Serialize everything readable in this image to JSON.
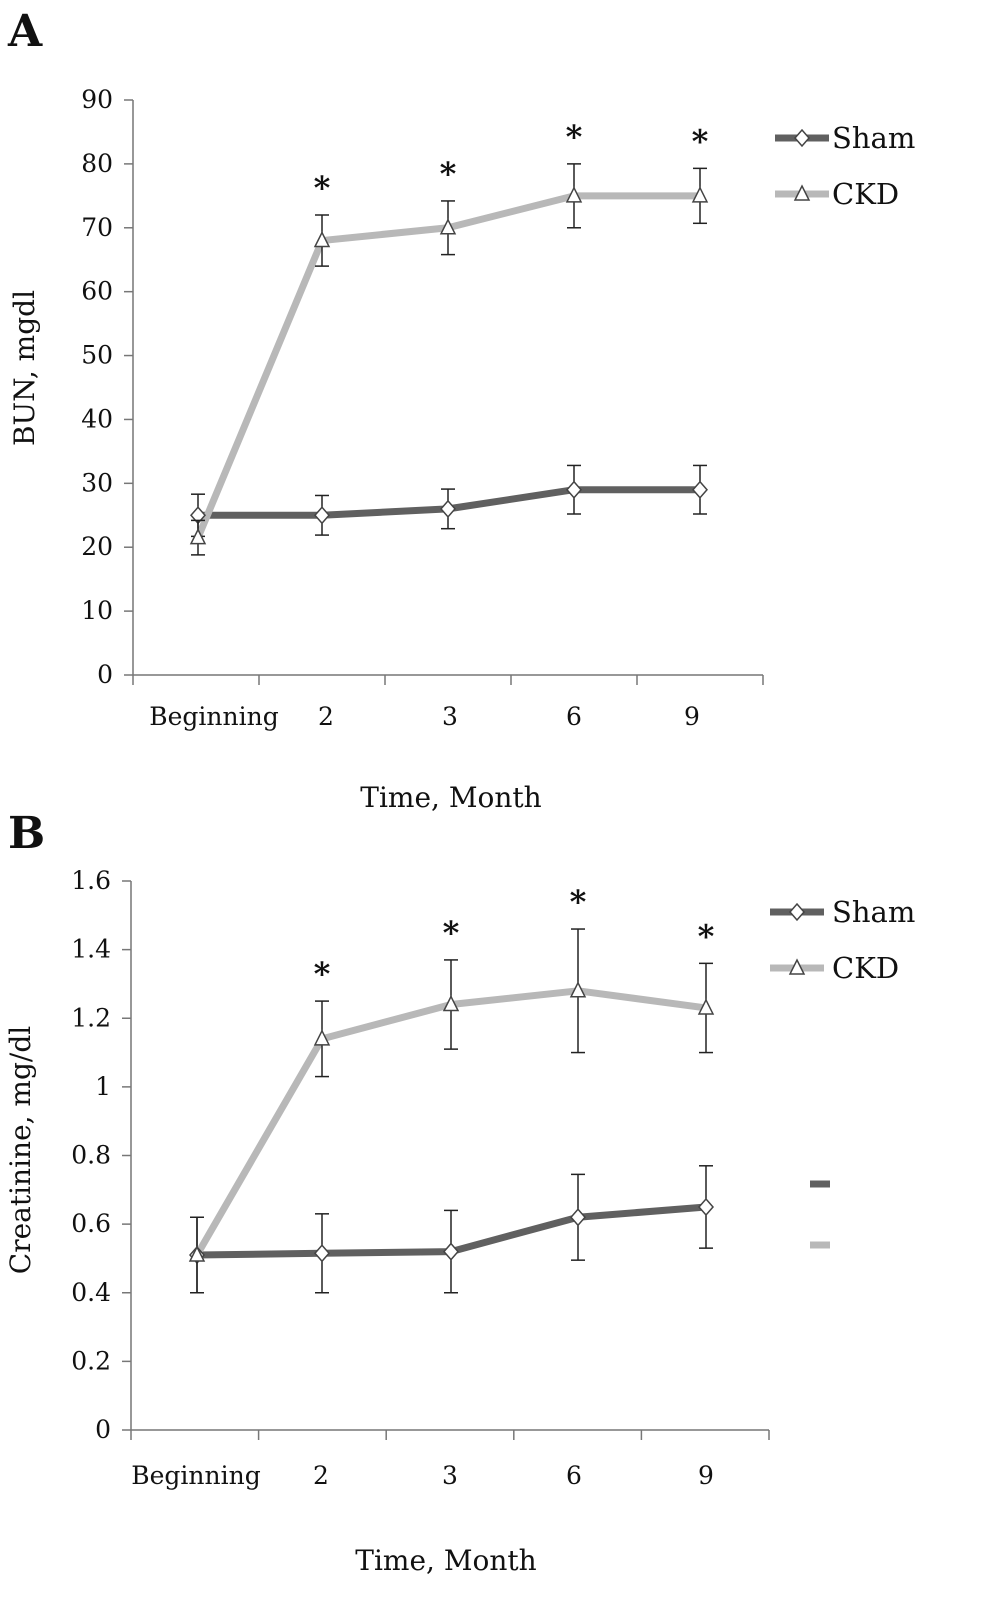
{
  "chart_data": [
    {
      "type": "line",
      "panel_label": "A",
      "xlabel": "Time, Month",
      "ylabel": "BUN, mgdl",
      "categories": [
        "Beginning",
        "2",
        "3",
        "6",
        "9"
      ],
      "ylim": [
        0,
        90
      ],
      "yticks": [
        "0",
        "10",
        "20",
        "30",
        "40",
        "50",
        "60",
        "70",
        "80",
        "90"
      ],
      "grid": false,
      "legend": "right",
      "series": [
        {
          "name": "Sham",
          "marker": "diamond",
          "color": "#606060",
          "values": [
            25,
            25,
            26,
            29,
            29
          ],
          "errors": [
            3.3,
            3.1,
            3.1,
            3.8,
            3.8
          ]
        },
        {
          "name": "CKD",
          "marker": "triangle",
          "color": "#b8b8b8",
          "values": [
            21.5,
            68,
            70,
            75,
            75
          ],
          "errors": [
            2.7,
            4.0,
            4.2,
            5.0,
            4.3
          ]
        }
      ],
      "significance": [
        "",
        "*",
        "*",
        "*",
        "*"
      ]
    },
    {
      "type": "line",
      "panel_label": "B",
      "xlabel": "Time, Month",
      "ylabel": "Creatinine, mg/dl",
      "categories": [
        "Beginning",
        "2",
        "3",
        "6",
        "9"
      ],
      "ylim": [
        0,
        1.6
      ],
      "yticks": [
        "0",
        "0.2",
        "0.4",
        "0.6",
        "0.8",
        "1",
        "1.2",
        "1.4",
        "1.6"
      ],
      "grid": false,
      "legend": "right",
      "series": [
        {
          "name": "Sham",
          "marker": "diamond",
          "color": "#606060",
          "values": [
            0.51,
            0.515,
            0.52,
            0.62,
            0.65
          ],
          "errors": [
            0.11,
            0.115,
            0.12,
            0.125,
            0.12
          ]
        },
        {
          "name": "CKD",
          "marker": "triangle",
          "color": "#b8b8b8",
          "values": [
            0.51,
            1.14,
            1.24,
            1.28,
            1.23
          ],
          "errors": [
            0.11,
            0.11,
            0.13,
            0.18,
            0.13
          ]
        }
      ],
      "significance": [
        "",
        "*",
        "*",
        "*",
        "*"
      ]
    }
  ]
}
